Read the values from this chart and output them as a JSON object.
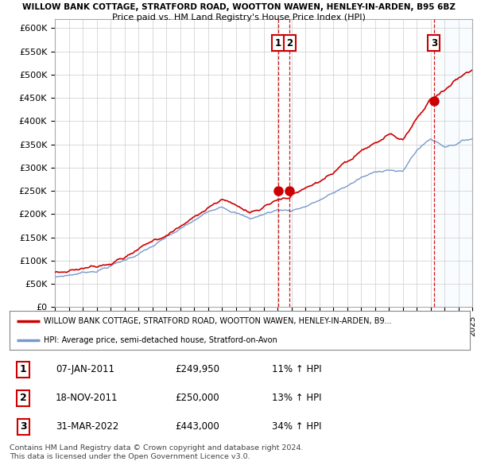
{
  "title_line1": "WILLOW BANK COTTAGE, STRATFORD ROAD, WOOTTON WAWEN, HENLEY-IN-ARDEN, B95 6BZ",
  "title_line2": "Price paid vs. HM Land Registry's House Price Index (HPI)",
  "ylim": [
    0,
    620000
  ],
  "yticks": [
    0,
    50000,
    100000,
    150000,
    200000,
    250000,
    300000,
    350000,
    400000,
    450000,
    500000,
    550000,
    600000
  ],
  "ytick_labels": [
    "£0",
    "£50K",
    "£100K",
    "£150K",
    "£200K",
    "£250K",
    "£300K",
    "£350K",
    "£400K",
    "£450K",
    "£500K",
    "£550K",
    "£600K"
  ],
  "red_line_color": "#cc0000",
  "blue_line_color": "#7799cc",
  "vline_color": "#cc0000",
  "shade_color": "#ddeeff",
  "trans_actual": [
    2011.03,
    2011.88,
    2022.25
  ],
  "trans_prices": [
    249950,
    250000,
    443000
  ],
  "trans_labels": [
    "1",
    "2",
    "3"
  ],
  "legend_red": "WILLOW BANK COTTAGE, STRATFORD ROAD, WOOTTON WAWEN, HENLEY-IN-ARDEN, B9...",
  "legend_blue": "HPI: Average price, semi-detached house, Stratford-on-Avon",
  "table_data": [
    [
      "1",
      "07-JAN-2011",
      "£249,950",
      "11% ↑ HPI"
    ],
    [
      "2",
      "18-NOV-2011",
      "£250,000",
      "13% ↑ HPI"
    ],
    [
      "3",
      "31-MAR-2022",
      "£443,000",
      "34% ↑ HPI"
    ]
  ],
  "footer": "Contains HM Land Registry data © Crown copyright and database right 2024.\nThis data is licensed under the Open Government Licence v3.0.",
  "background_color": "#ffffff",
  "grid_color": "#cccccc"
}
